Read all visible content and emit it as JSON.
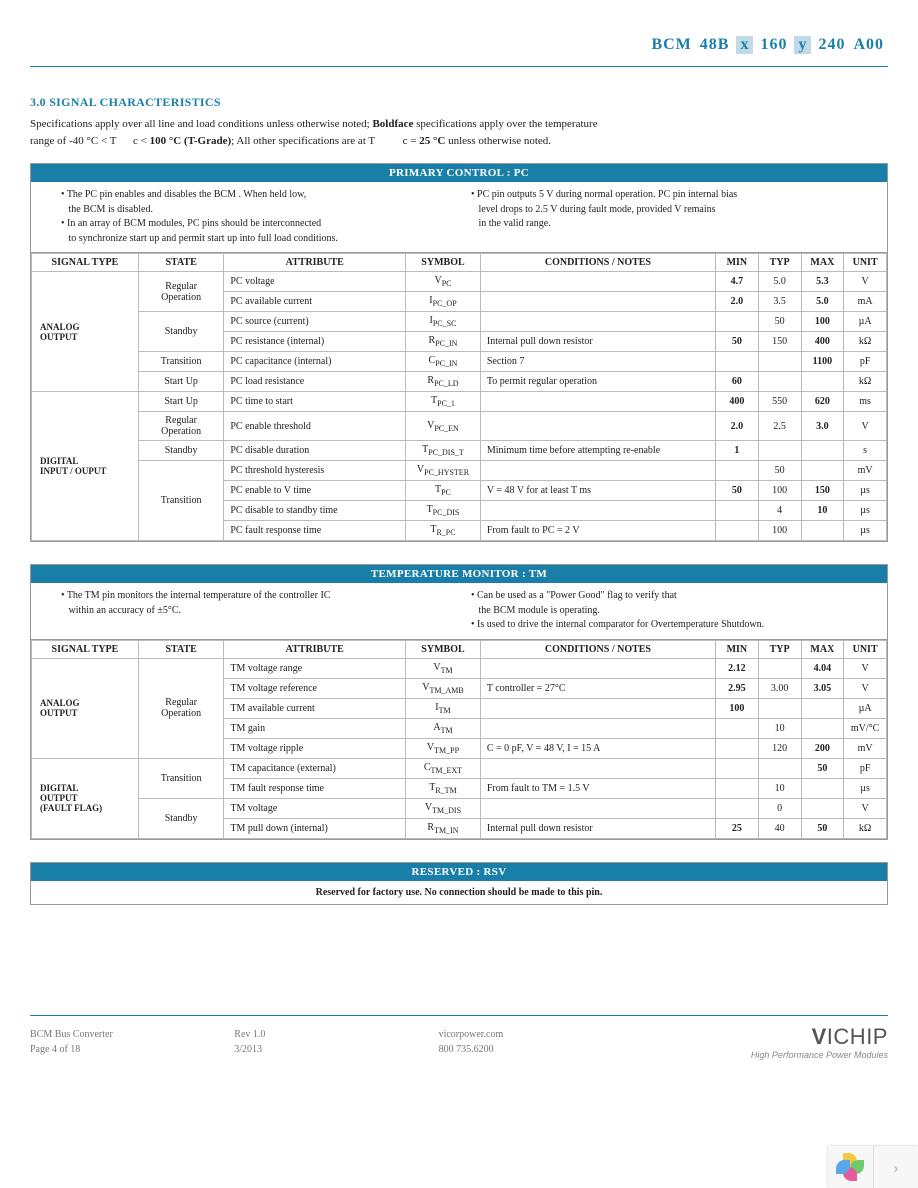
{
  "header": {
    "parts": [
      "BCM",
      "48B",
      "x",
      "160",
      "y",
      "240",
      "A00"
    ]
  },
  "section_title": "3.0 SIGNAL CHARACTERISTICS",
  "intro_l1": "Specifications apply over all line and load conditions unless otherwise noted; ",
  "intro_bold1": "Boldface ",
  "intro_l1b": "specifications apply over the temperature",
  "intro_l2": "range of -40 °C < T",
  "intro_l2b": "c < ",
  "intro_bold2": "100 °C (T-Grade)",
  "intro_l2c": "; All other specifications are at T",
  "intro_l2d": "c = ",
  "intro_bold3": "25 °C ",
  "intro_l2e": "unless otherwise noted.",
  "columns": [
    "SIGNAL TYPE",
    "STATE",
    "ATTRIBUTE",
    "SYMBOL",
    "CONDITIONS / NOTES",
    "MIN",
    "TYP",
    "MAX",
    "UNIT"
  ],
  "t1": {
    "title": "PRIMARY CONTROL : PC",
    "notes_left": [
      {
        "lead": "• The PC pin enables and disables the BCM",
        "tail": ". When held low,",
        "indent": "the BCM    is disabled."
      },
      {
        "lead": "• In an array of BCM",
        "tail": " modules, PC pins should be interconnected",
        "indent": "to synchronize start up and permit start up into full load conditions."
      }
    ],
    "notes_right": [
      {
        "lead": "• PC pin outputs 5 V during normal operation. PC pin internal bias",
        "indent1": "level drops to 2.5 V during fault mode, provided V",
        "indent1_tail": " remains",
        "indent2": "in the valid range."
      }
    ],
    "rows": [
      {
        "sig": "ANALOG\nOUTPUT",
        "sigspan": 6,
        "state": "Regular\nOperation",
        "statespan": 2,
        "attr": "PC voltage",
        "sym": "V",
        "sub": "PC",
        "cond": "",
        "min": "4.7",
        "typ": "5.0",
        "max": "5.3",
        "unit": "V"
      },
      {
        "state": null,
        "attr": "PC available current",
        "sym": "I",
        "sub": "PC_OP",
        "cond": "",
        "min": "2.0",
        "typ": "3.5",
        "max": "5.0",
        "unit": "mA"
      },
      {
        "state": "Standby",
        "statespan": 2,
        "attr": "PC source (current)",
        "sym": "I",
        "sub": "PC_SC",
        "cond": "",
        "min": "",
        "typ": "50",
        "max": "100",
        "unit": "µA"
      },
      {
        "state": null,
        "attr": "PC resistance (internal)",
        "sym": "R",
        "sub": "PC_IN",
        "cond": "Internal pull down resistor",
        "min": "50",
        "typ": "150",
        "max": "400",
        "unit": "kΩ"
      },
      {
        "state": "Transition",
        "statespan": 1,
        "attr": "PC capacitance (internal)",
        "sym": "C",
        "sub": "PC_IN",
        "cond": "Section 7",
        "min": "",
        "typ": "",
        "max": "1100",
        "unit": "pF"
      },
      {
        "state": "Start Up",
        "statespan": 1,
        "attr": "PC load resistance",
        "sym": "R",
        "sub": "PC_LD",
        "cond": "To permit regular operation",
        "min": "60",
        "typ": "",
        "max": "",
        "unit": "kΩ"
      },
      {
        "sig": "DIGITAL\nINPUT / OUPUT",
        "sigspan": 7,
        "state": "Start Up",
        "statespan": 1,
        "attr": "PC time to start",
        "sym": "T",
        "sub": "PC_1",
        "cond": "",
        "min": "400",
        "typ": "550",
        "max": "620",
        "unit": "ms"
      },
      {
        "state": "Regular\nOperation",
        "statespan": 1,
        "attr": "PC enable threshold",
        "sym": "V",
        "sub": "PC_EN",
        "cond": "",
        "min": "2.0",
        "typ": "2.5",
        "max": "3.0",
        "unit": "V"
      },
      {
        "state": "Standby",
        "statespan": 1,
        "attr": "PC disable duration",
        "sym": "T",
        "sub": "PC_DIS_T",
        "cond": "Minimum time before attempting re-enable",
        "min": "1",
        "typ": "",
        "max": "",
        "unit": "s"
      },
      {
        "state": "Transition",
        "statespan": 4,
        "attr": "PC threshold hysteresis",
        "sym": "V",
        "sub": "PC_HYSTER",
        "cond": "",
        "min": "",
        "typ": "50",
        "max": "",
        "unit": "mV"
      },
      {
        "state": null,
        "attr": "PC enable to V        time",
        "sym": "T",
        "sub": "PC",
        "cond": "V   = 48 V for at least T        ms",
        "min": "50",
        "typ": "100",
        "max": "150",
        "unit": "µs"
      },
      {
        "state": null,
        "attr": "PC disable to standby time",
        "sym": "T",
        "sub": "PC_DIS",
        "cond": "",
        "min": "",
        "typ": "4",
        "max": "10",
        "unit": "µs"
      },
      {
        "state": null,
        "attr": "PC fault response time",
        "sym": "T",
        "sub": "R_PC",
        "cond": "From fault to PC = 2 V",
        "min": "",
        "typ": "100",
        "max": "",
        "unit": "µs"
      }
    ]
  },
  "t2": {
    "title": "TEMPERATURE MONITOR : TM",
    "notes_left": [
      {
        "lead": "• The TM pin monitors the internal temperature of the controller IC",
        "indent": "within an accuracy of ±5°C."
      }
    ],
    "notes_right": [
      {
        "lead": "• Can be used as a \"Power Good\" flag to verify that",
        "indent": "the BCM     module is operating."
      },
      {
        "lead": "• Is used to drive the internal comparator for Overtemperature Shutdown."
      }
    ],
    "rows": [
      {
        "sig": "ANALOG\nOUTPUT",
        "sigspan": 5,
        "state": "Regular\nOperation",
        "statespan": 5,
        "attr": "TM voltage range",
        "sym": "V",
        "sub": "TM",
        "cond": "",
        "min": "2.12",
        "typ": "",
        "max": "4.04",
        "unit": "V"
      },
      {
        "state": null,
        "attr": "TM voltage reference",
        "sym": "V",
        "sub": "TM_AMB",
        "cond": "T  controller = 27°C",
        "min": "2.95",
        "typ": "3.00",
        "max": "3.05",
        "unit": "V"
      },
      {
        "state": null,
        "attr": "TM available current",
        "sym": "I",
        "sub": "TM",
        "cond": "",
        "min": "100",
        "typ": "",
        "max": "",
        "unit": "µA"
      },
      {
        "state": null,
        "attr": "TM gain",
        "sym": "A",
        "sub": "TM",
        "cond": "",
        "min": "",
        "typ": "10",
        "max": "",
        "unit": "mV/°C"
      },
      {
        "state": null,
        "attr": "TM voltage ripple",
        "sym": "V",
        "sub": "TM_PP",
        "cond": "C    = 0 pF, V    = 48 V, I     = 15 A",
        "min": "",
        "typ": "120",
        "max": "200",
        "unit": "mV"
      },
      {
        "sig": "DIGITAL\nOUTPUT\n(FAULT FLAG)",
        "sigspan": 4,
        "state": "Transition",
        "statespan": 2,
        "attr": "TM capacitance (external)",
        "sym": "C",
        "sub": "TM_EXT",
        "cond": "",
        "min": "",
        "typ": "",
        "max": "50",
        "unit": "pF"
      },
      {
        "state": null,
        "attr": "TM fault response time",
        "sym": "T",
        "sub": "R_TM",
        "cond": "From fault to TM = 1.5 V",
        "min": "",
        "typ": "10",
        "max": "",
        "unit": "µs"
      },
      {
        "state": "Standby",
        "statespan": 2,
        "attr": "TM voltage",
        "sym": "V",
        "sub": "TM_DIS",
        "cond": "",
        "min": "",
        "typ": "0",
        "max": "",
        "unit": "V"
      },
      {
        "state": null,
        "attr": "TM pull down (internal)",
        "sym": "R",
        "sub": "TM_IN",
        "cond": "Internal pull down resistor",
        "min": "25",
        "typ": "40",
        "max": "50",
        "unit": "kΩ"
      }
    ]
  },
  "t3": {
    "title": "RESERVED : RSV",
    "note": "Reserved for factory use. No connection should be made to this pin."
  },
  "footer": {
    "c1a": "BCM    Bus Converter",
    "c1b": "Page 4 of 18",
    "c2a": "Rev 1.0",
    "c2b": "3/2013",
    "c3a": "vicorpower.com",
    "c3b": "800 735.6200",
    "logo_a": "V",
    "logo_b": "I",
    "logo_rest": "CHIP",
    "logo_sub": "High Performance Power Modules"
  }
}
